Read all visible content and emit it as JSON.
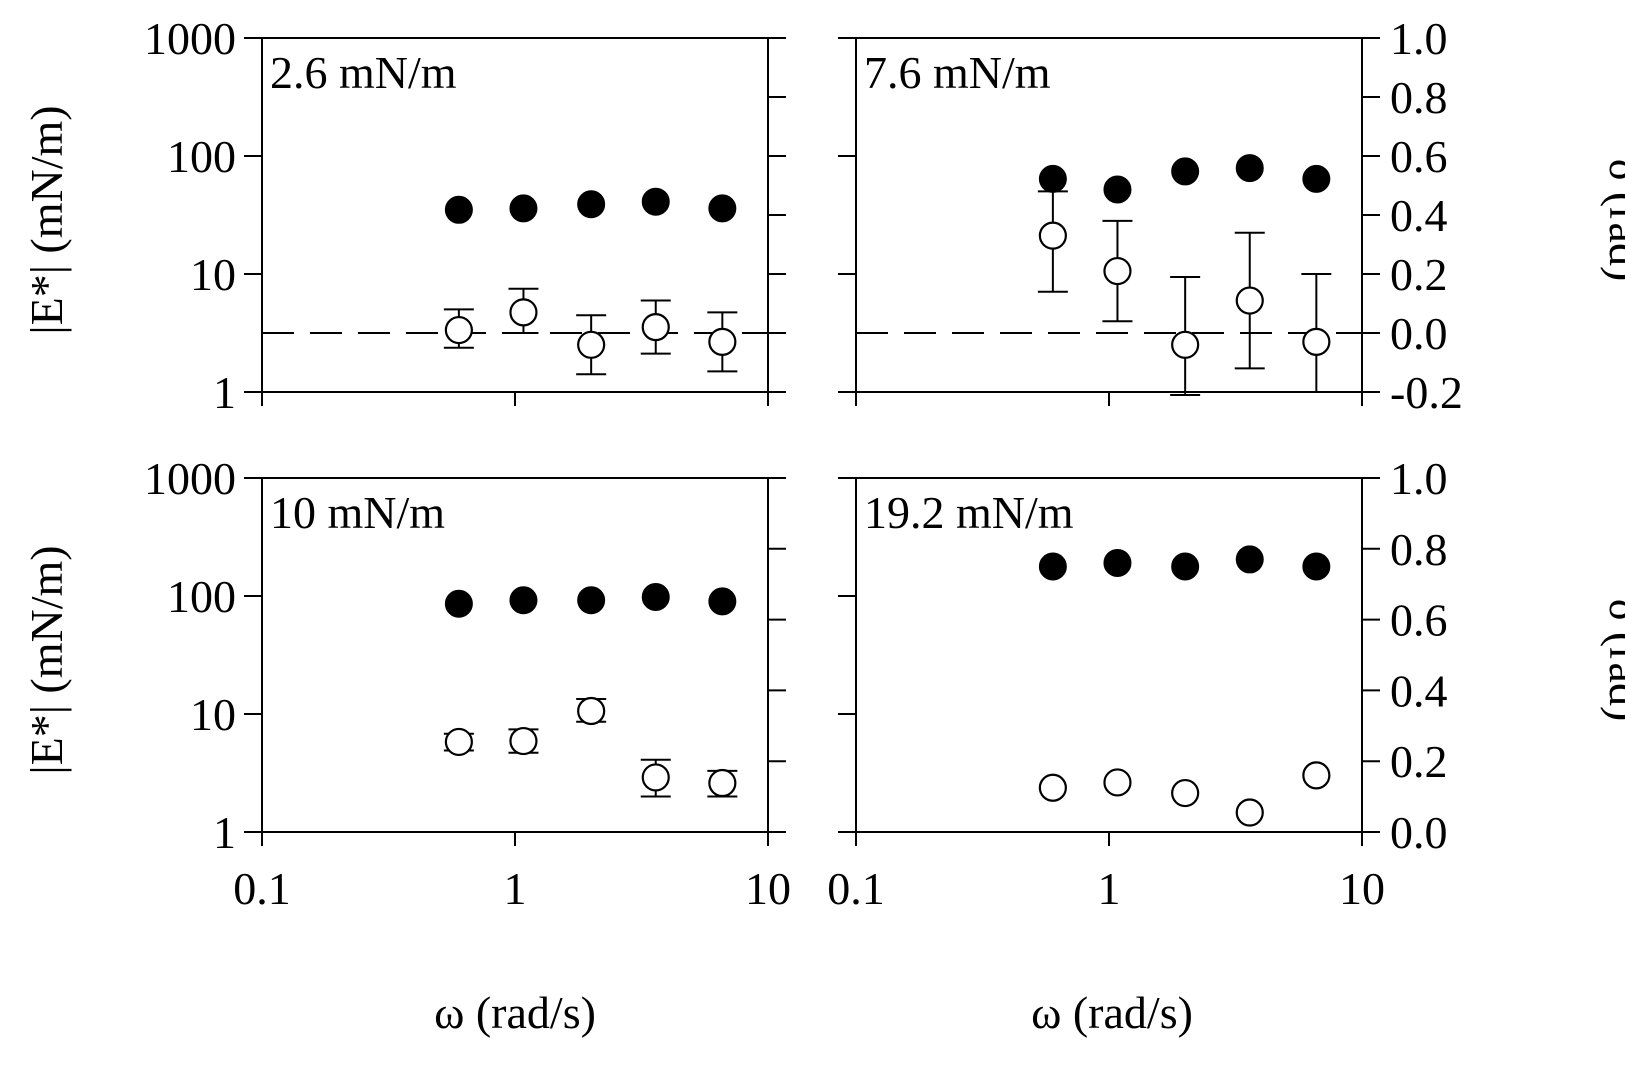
{
  "figure": {
    "xlabel": "ω (rad/s)",
    "ylabel_left": "|E*| (mN/m)",
    "ylabel_right": "δ (rad)"
  },
  "chart_data": [
    {
      "type": "scatter",
      "label": "2.6 mN/m",
      "xscale": "log",
      "xlim": [
        0.1,
        10
      ],
      "x_ticks": [
        "0.1",
        "1",
        "10"
      ],
      "left_axis": {
        "label": "|E*| (mN/m)",
        "scale": "log",
        "lim": [
          1,
          1000
        ],
        "ticks": [
          "1",
          "10",
          "100",
          "1000"
        ]
      },
      "right_axis": {
        "label": "δ (rad)",
        "scale": "linear",
        "lim": [
          -0.2,
          1.0
        ],
        "ticks": [
          "-0.2",
          "0.0",
          "0.2",
          "0.4",
          "0.6",
          "0.8",
          "1.0"
        ]
      },
      "reference_line": {
        "axis": "right",
        "value": 0.0,
        "style": "dashed"
      },
      "series": [
        {
          "marker": "filled-circle",
          "axis": "left",
          "x": [
            0.6,
            1.08,
            2.0,
            3.6,
            6.6
          ],
          "y": [
            35,
            36,
            39,
            41,
            36
          ]
        },
        {
          "marker": "open-circle",
          "axis": "right",
          "x": [
            0.6,
            1.08,
            2.0,
            3.6,
            6.6
          ],
          "y": [
            0.01,
            0.07,
            -0.04,
            0.02,
            -0.03
          ],
          "err_low": [
            0.06,
            0.07,
            0.1,
            0.09,
            0.1
          ],
          "err_high": [
            0.07,
            0.08,
            0.1,
            0.09,
            0.1
          ]
        }
      ]
    },
    {
      "type": "scatter",
      "label": "7.6 mN/m",
      "xscale": "log",
      "xlim": [
        0.1,
        10
      ],
      "x_ticks": [
        "0.1",
        "1",
        "10"
      ],
      "left_axis": {
        "label": "|E*| (mN/m)",
        "scale": "log",
        "lim": [
          1,
          1000
        ],
        "ticks": [
          "1",
          "10",
          "100",
          "1000"
        ]
      },
      "right_axis": {
        "label": "δ (rad)",
        "scale": "linear",
        "lim": [
          -0.2,
          1.0
        ],
        "ticks": [
          "-0.2",
          "0.0",
          "0.2",
          "0.4",
          "0.6",
          "0.8",
          "1.0"
        ]
      },
      "reference_line": {
        "axis": "right",
        "value": 0.0,
        "style": "dashed"
      },
      "series": [
        {
          "marker": "filled-circle",
          "axis": "left",
          "x": [
            0.6,
            1.08,
            2.0,
            3.6,
            6.6
          ],
          "y": [
            64,
            52,
            74,
            79,
            64
          ]
        },
        {
          "marker": "open-circle",
          "axis": "right",
          "x": [
            0.6,
            1.08,
            2.0,
            3.6,
            6.6
          ],
          "y": [
            0.33,
            0.21,
            -0.04,
            0.11,
            -0.03
          ],
          "err_low": [
            0.19,
            0.17,
            0.17,
            0.23,
            0.17
          ],
          "err_high": [
            0.15,
            0.17,
            0.23,
            0.23,
            0.23
          ]
        }
      ]
    },
    {
      "type": "scatter",
      "label": "10 mN/m",
      "xscale": "log",
      "xlim": [
        0.1,
        10
      ],
      "x_ticks": [
        "0.1",
        "1",
        "10"
      ],
      "left_axis": {
        "label": "|E*| (mN/m)",
        "scale": "log",
        "lim": [
          1,
          1000
        ],
        "ticks": [
          "1",
          "10",
          "100",
          "1000"
        ]
      },
      "right_axis": {
        "label": "δ (rad)",
        "scale": "linear",
        "lim": [
          0.0,
          1.0
        ],
        "ticks": [
          "0.0",
          "0.2",
          "0.4",
          "0.6",
          "0.8",
          "1.0"
        ]
      },
      "reference_line": {
        "axis": "right",
        "value": 0.0,
        "style": "dashed"
      },
      "series": [
        {
          "marker": "filled-circle",
          "axis": "left",
          "x": [
            0.6,
            1.08,
            2.0,
            3.6,
            6.6
          ],
          "y": [
            86,
            92,
            92,
            98,
            90
          ]
        },
        {
          "marker": "open-circle",
          "axis": "left",
          "x": [
            0.6,
            1.08,
            2.0,
            3.6,
            6.6
          ],
          "y": [
            5.8,
            5.9,
            10.6,
            2.9,
            2.6
          ],
          "err_low": [
            0.9,
            1.2,
            2.0,
            0.9,
            0.6
          ],
          "err_high": [
            1.0,
            1.5,
            2.8,
            1.2,
            0.7
          ]
        }
      ]
    },
    {
      "type": "scatter",
      "label": "19.2 mN/m",
      "xscale": "log",
      "xlim": [
        0.1,
        10
      ],
      "x_ticks": [
        "0.1",
        "1",
        "10"
      ],
      "left_axis": {
        "label": "|E*| (mN/m)",
        "scale": "log",
        "lim": [
          1,
          1000
        ],
        "ticks": [
          "1",
          "10",
          "100",
          "1000"
        ]
      },
      "right_axis": {
        "label": "δ (rad)",
        "scale": "linear",
        "lim": [
          0.0,
          1.0
        ],
        "ticks": [
          "0.0",
          "0.2",
          "0.4",
          "0.6",
          "0.8",
          "1.0"
        ]
      },
      "reference_line": {
        "axis": "right",
        "value": 0.0,
        "style": "dashed"
      },
      "series": [
        {
          "marker": "filled-circle",
          "axis": "right",
          "x": [
            0.6,
            1.08,
            2.0,
            3.6,
            6.6
          ],
          "y": [
            0.75,
            0.76,
            0.75,
            0.77,
            0.75
          ]
        },
        {
          "marker": "open-circle",
          "axis": "right",
          "x": [
            0.6,
            1.08,
            2.0,
            3.6,
            6.6
          ],
          "y": [
            0.125,
            0.14,
            0.11,
            0.055,
            0.16
          ]
        }
      ]
    }
  ]
}
